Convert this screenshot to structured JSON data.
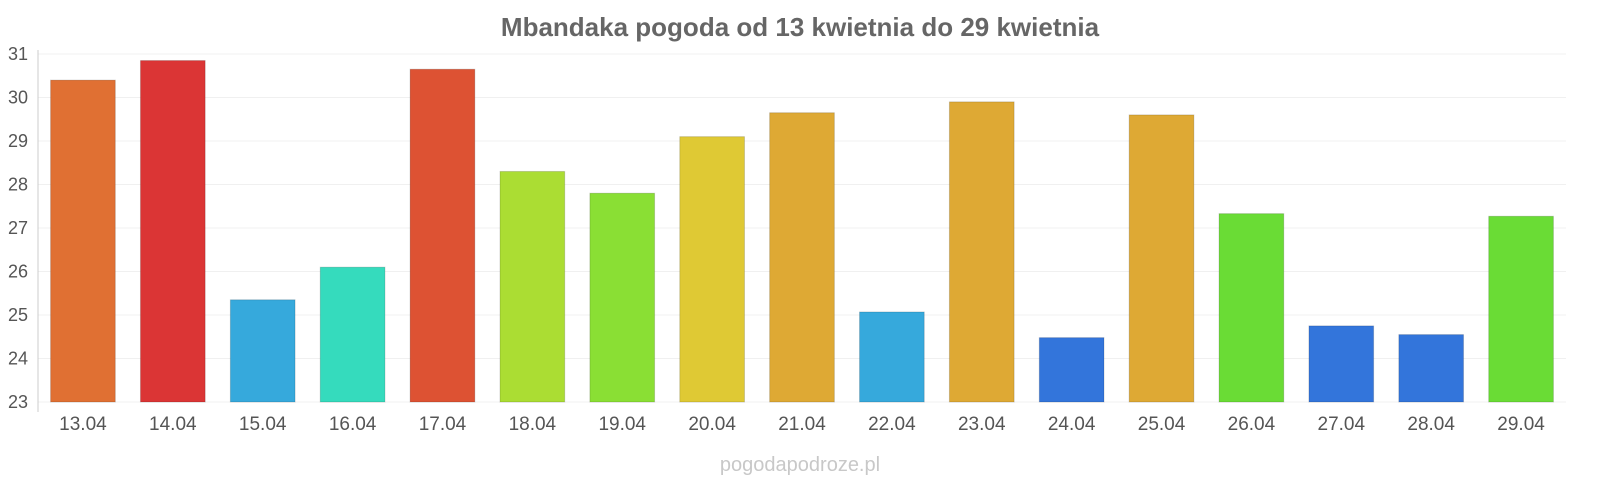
{
  "chart_data": {
    "type": "bar",
    "title": "Mbandaka pogoda od 13 kwietnia do 29 kwietnia",
    "xlabel": "",
    "ylabel": "",
    "ylim": [
      23,
      31
    ],
    "yticks": [
      23,
      24,
      25,
      26,
      27,
      28,
      29,
      30,
      31
    ],
    "grid": true,
    "categories": [
      "13.04",
      "14.04",
      "15.04",
      "16.04",
      "17.04",
      "18.04",
      "19.04",
      "20.04",
      "21.04",
      "22.04",
      "23.04",
      "24.04",
      "25.04",
      "26.04",
      "27.04",
      "28.04",
      "29.04"
    ],
    "values": [
      30.4,
      30.85,
      25.35,
      26.1,
      30.65,
      28.3,
      27.8,
      29.1,
      29.65,
      25.07,
      29.9,
      24.48,
      29.6,
      27.33,
      24.75,
      24.55,
      27.27
    ],
    "colors": [
      "#e07033",
      "#db3535",
      "#36a9dc",
      "#35dbbd",
      "#dd5233",
      "#abdd33",
      "#8adf34",
      "#dfc934",
      "#dea934",
      "#36a9dc",
      "#dea934",
      "#3375db",
      "#dea934",
      "#6adc35",
      "#3375db",
      "#3375db",
      "#6adc35"
    ]
  },
  "watermark": "pogodapodroze.pl"
}
